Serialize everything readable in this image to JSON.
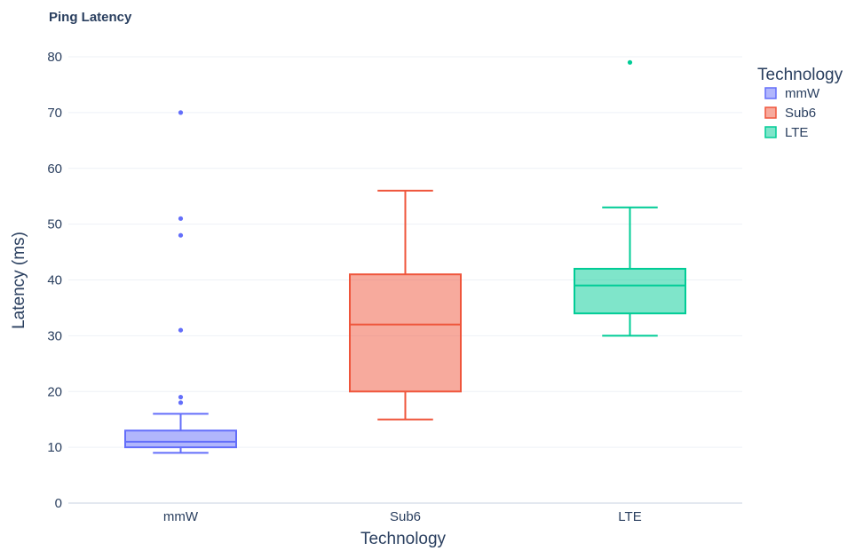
{
  "chart_data": {
    "type": "box",
    "title": "Ping Latency",
    "xlabel": "Technology",
    "ylabel": "Latency (ms)",
    "ylim": [
      0,
      80
    ],
    "yticks": [
      0,
      10,
      20,
      30,
      40,
      50,
      60,
      70,
      80
    ],
    "grid": true,
    "legend": {
      "title": "Technology",
      "placement": "top-right"
    },
    "categories": [
      "mmW",
      "Sub6",
      "LTE"
    ],
    "series": [
      {
        "name": "mmW",
        "color": "#636efa",
        "min": 9,
        "q1": 10,
        "median": 11,
        "q3": 13,
        "max": 16,
        "outliers": [
          18,
          19,
          31,
          48,
          51,
          70
        ]
      },
      {
        "name": "Sub6",
        "color": "#ef553b",
        "min": 15,
        "q1": 20,
        "median": 32,
        "q3": 41,
        "max": 56,
        "outliers": []
      },
      {
        "name": "LTE",
        "color": "#00cc96",
        "min": 30,
        "q1": 34,
        "median": 39,
        "q3": 42,
        "max": 53,
        "outliers": [
          79
        ]
      }
    ]
  }
}
